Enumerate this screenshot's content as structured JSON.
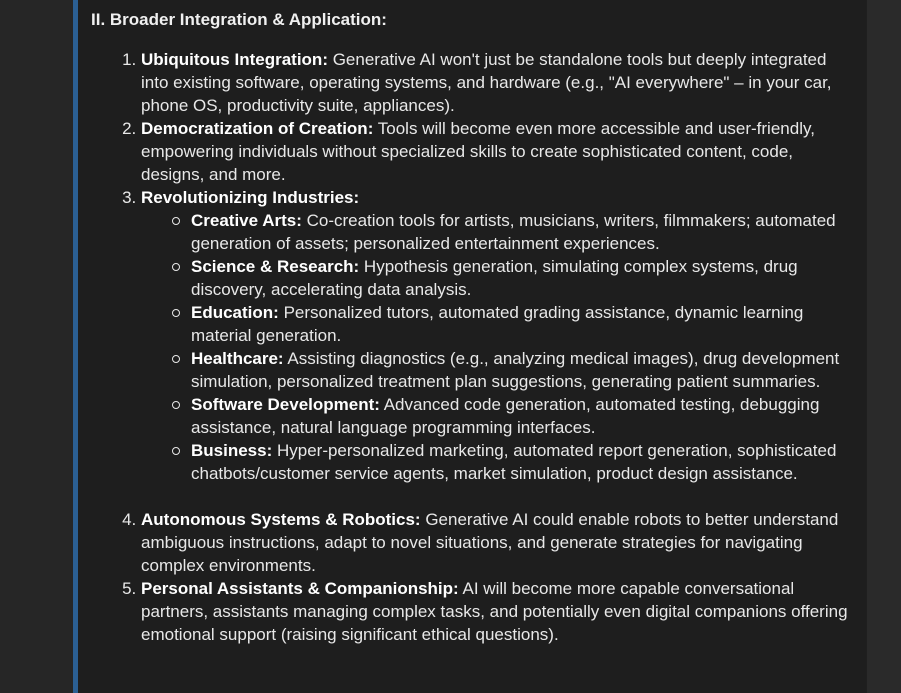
{
  "section": {
    "heading": "II. Broader Integration & Application:"
  },
  "items": [
    {
      "number": "1.",
      "term": "Ubiquitous Integration:",
      "text": " Generative AI won't just be standalone tools but deeply integrated into existing software, operating systems, and hardware (e.g., \"AI everywhere\" – in your car, phone OS, productivity suite, appliances)."
    },
    {
      "number": "2.",
      "term": "Democratization of Creation:",
      "text": " Tools will become even more accessible and user-friendly, empowering individuals without specialized skills to create sophisticated content, code, designs, and more."
    },
    {
      "number": "3.",
      "term": "Revolutionizing Industries:",
      "text": "",
      "sub_items": [
        {
          "term": "Creative Arts:",
          "text": " Co-creation tools for artists, musicians, writers, filmmakers; automated generation of assets; personalized entertainment experiences."
        },
        {
          "term": "Science & Research:",
          "text": " Hypothesis generation, simulating complex systems, drug discovery, accelerating data analysis."
        },
        {
          "term": "Education:",
          "text": " Personalized tutors, automated grading assistance, dynamic learning material generation."
        },
        {
          "term": "Healthcare:",
          "text": " Assisting diagnostics (e.g., analyzing medical images), drug development simulation, personalized treatment plan suggestions, generating patient summaries."
        },
        {
          "term": "Software Development:",
          "text": " Advanced code generation, automated testing, debugging assistance, natural language programming interfaces."
        },
        {
          "term": "Business:",
          "text": " Hyper-personalized marketing, automated report generation, sophisticated chatbots/customer service agents, market simulation, product design assistance."
        }
      ]
    },
    {
      "number": "4.",
      "term": "Autonomous Systems & Robotics:",
      "text": " Generative AI could enable robots to better understand ambiguous instructions, adapt to novel situations, and generate strategies for navigating complex environments."
    },
    {
      "number": "5.",
      "term": "Personal Assistants & Companionship:",
      "text": " AI will become more capable conversational partners, assistants managing complex tasks, and potentially even digital companions offering emotional support (raising significant ethical questions)."
    }
  ],
  "colors": {
    "accent_bar": "#2b5f93",
    "panel_background": "#1e1e1e",
    "text": "#e8e8e8"
  },
  "icons": {
    "sub_bullet": "hollow-circle-bullet-icon"
  }
}
